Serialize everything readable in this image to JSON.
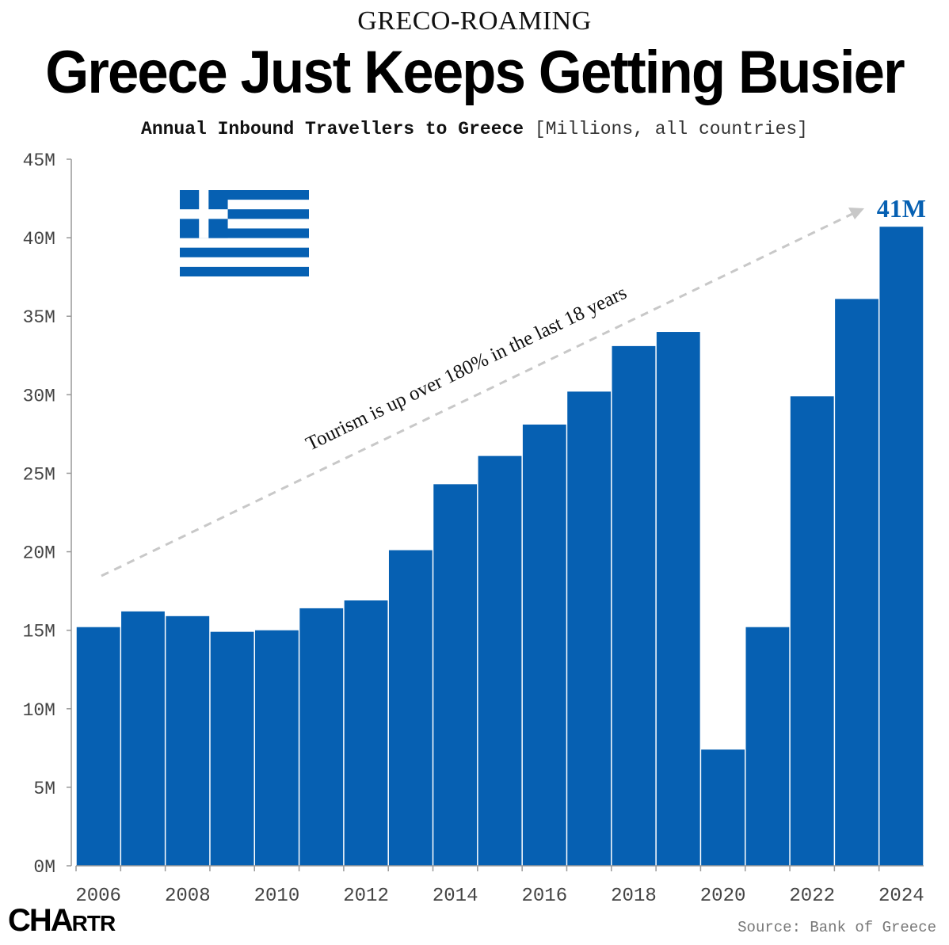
{
  "header": {
    "kicker": "GRECO-ROAMING",
    "title": "Greece Just Keeps Getting Busier",
    "subtitle": "Annual Inbound Travellers to Greece",
    "subtitle_unit": "[Millions, all countries]"
  },
  "footer": {
    "logo_main": "CHA",
    "logo_small": "RTR",
    "source": "Source: Bank of Greece"
  },
  "colors": {
    "bar": "#0660b2",
    "annotation_arrow": "#c8c8c8",
    "label_accent": "#0660b2",
    "axis": "#999999"
  },
  "flag": {
    "icon": "greek-flag-icon",
    "color": "#0660b2"
  },
  "chart_data": {
    "type": "bar",
    "categories": [
      "2006",
      "2007",
      "2008",
      "2009",
      "2010",
      "2011",
      "2012",
      "2013",
      "2014",
      "2015",
      "2016",
      "2017",
      "2018",
      "2019",
      "2020",
      "2021",
      "2022",
      "2023",
      "2024"
    ],
    "values": [
      15.2,
      16.2,
      15.9,
      14.9,
      15.0,
      16.4,
      16.9,
      20.1,
      24.3,
      26.1,
      28.1,
      30.2,
      33.1,
      34.0,
      7.4,
      15.2,
      29.9,
      36.1,
      40.7
    ],
    "ylim": [
      0,
      45
    ],
    "yticks": [
      0,
      5,
      10,
      15,
      20,
      25,
      30,
      35,
      40,
      45
    ],
    "ytick_labels": [
      "0M",
      "5M",
      "10M",
      "15M",
      "20M",
      "25M",
      "30M",
      "35M",
      "40M",
      "45M"
    ],
    "xtick_labels": [
      "2006",
      "2008",
      "2010",
      "2012",
      "2014",
      "2016",
      "2018",
      "2020",
      "2022",
      "2024"
    ],
    "grid": false,
    "legend": "none",
    "annotations": [
      {
        "text": "Tourism is up over 180% in the last 18 years",
        "type": "arrow-text"
      },
      {
        "text": "41M",
        "category": "2024"
      }
    ]
  }
}
